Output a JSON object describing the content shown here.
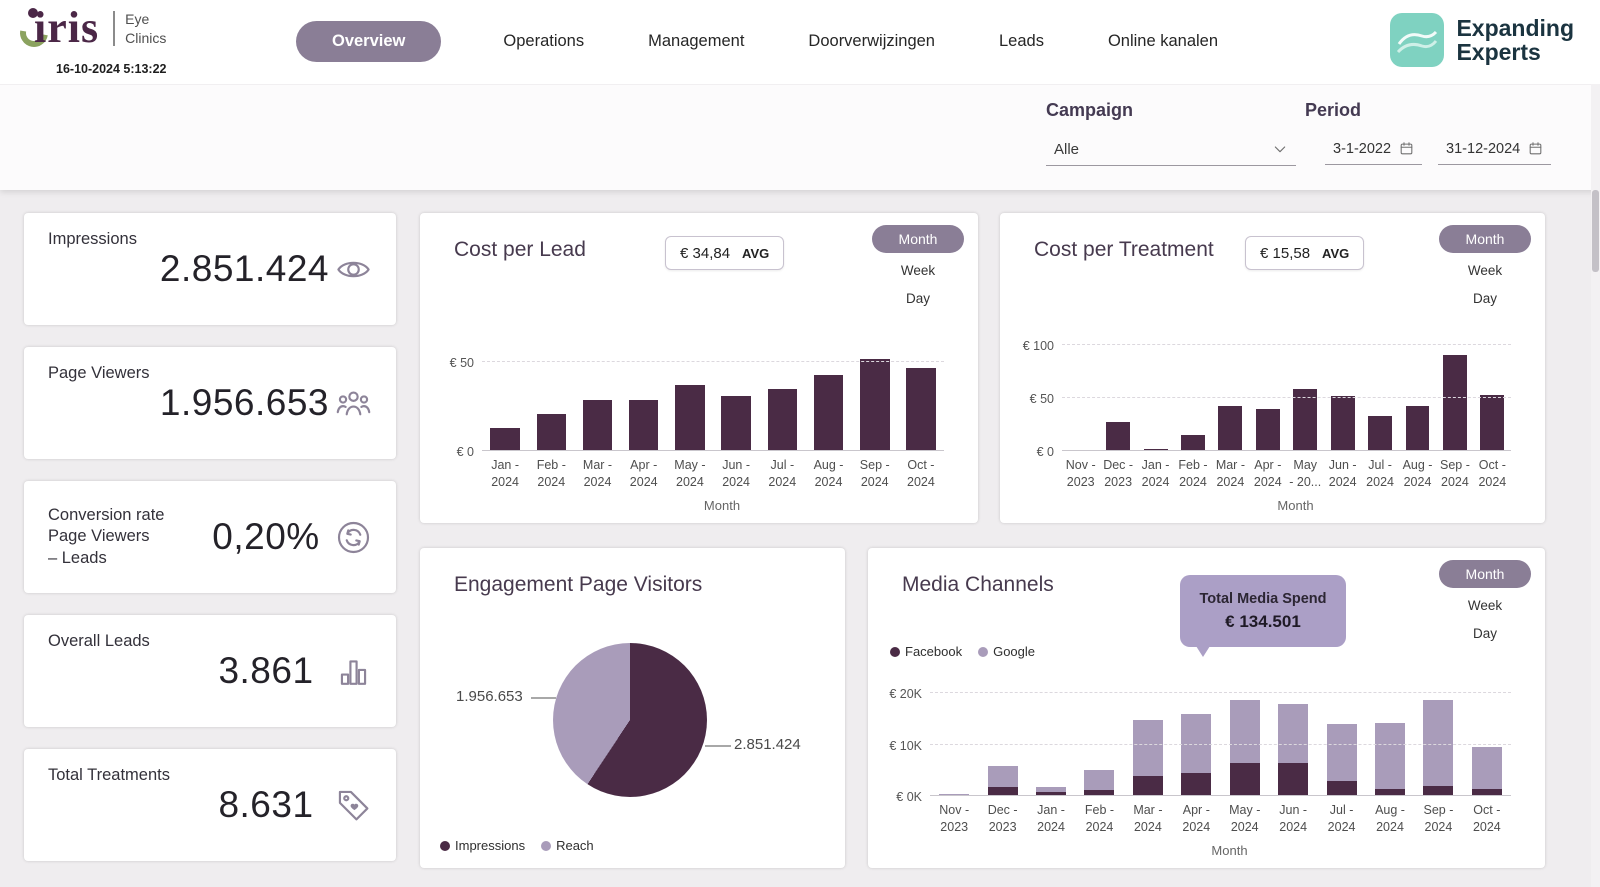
{
  "header": {
    "logo": {
      "wordmark": "iris",
      "division_line1": "Eye",
      "division_line2": "Clinics"
    },
    "timestamp": "16-10-2024 5:13:22",
    "nav": [
      {
        "label": "Overview",
        "active": true
      },
      {
        "label": "Operations",
        "active": false
      },
      {
        "label": "Management",
        "active": false
      },
      {
        "label": "Doorverwijzingen",
        "active": false
      },
      {
        "label": "Leads",
        "active": false
      },
      {
        "label": "Online kanalen",
        "active": false
      }
    ],
    "brand": {
      "name_line1": "Expanding",
      "name_line2": "Experts"
    }
  },
  "filters": {
    "campaign": {
      "label": "Campaign",
      "value": "Alle"
    },
    "period": {
      "label": "Period",
      "start": "3-1-2022",
      "end": "31-12-2024"
    }
  },
  "view_toggle": {
    "options": [
      "Month",
      "Week",
      "Day"
    ],
    "selected": "Month"
  },
  "kpis": [
    {
      "label": "Impressions",
      "value": "2.851.424",
      "icon": "eye-icon"
    },
    {
      "label": "Page Viewers",
      "value": "1.956.653",
      "icon": "audience-icon"
    },
    {
      "label": "Conversion rate Page Viewers – Leads",
      "label_lines": [
        "Conversion rate",
        "Page Viewers",
        "– Leads"
      ],
      "value": "0,20%",
      "icon": "conversion-refresh-icon"
    },
    {
      "label": "Overall Leads",
      "value": "3.861",
      "icon": "bar-chart-icon"
    },
    {
      "label": "Total Treatments",
      "value": "8.631",
      "icon": "tag-heart-icon"
    }
  ],
  "colors": {
    "primary_dark": "#4a2b45",
    "accent_light": "#a99cba",
    "pill": "#8a7e96",
    "callout_bg": "#ab9fc6"
  },
  "chart_data": [
    {
      "id": "cost_per_lead",
      "type": "bar",
      "title": "Cost per Lead",
      "avg_badge": {
        "value": "€ 34,84",
        "suffix": "AVG"
      },
      "categories": [
        [
          "Jan -",
          "2024"
        ],
        [
          "Feb -",
          "2024"
        ],
        [
          "Mar -",
          "2024"
        ],
        [
          "Apr -",
          "2024"
        ],
        [
          "May -",
          "2024"
        ],
        [
          "Jun -",
          "2024"
        ],
        [
          "Jul -",
          "2024"
        ],
        [
          "Aug -",
          "2024"
        ],
        [
          "Sep -",
          "2024"
        ],
        [
          "Oct -",
          "2024"
        ]
      ],
      "values": [
        13,
        21,
        29,
        29,
        37,
        31,
        35,
        43,
        52,
        47
      ],
      "unit": "EUR",
      "ylim": [
        0,
        55
      ],
      "yticks": [
        {
          "v": 0,
          "label": "€ 0"
        },
        {
          "v": 50,
          "label": "€ 50"
        }
      ],
      "xlabel": "Month",
      "bar_color": "#4a2b45",
      "grid": true,
      "legend_position": "none"
    },
    {
      "id": "cost_per_treatment",
      "type": "bar",
      "title": "Cost per Treatment",
      "avg_badge": {
        "value": "€ 15,58",
        "suffix": "AVG"
      },
      "categories": [
        [
          "Nov -",
          "2023"
        ],
        [
          "Dec -",
          "2023"
        ],
        [
          "Jan -",
          "2024"
        ],
        [
          "Feb -",
          "2024"
        ],
        [
          "Mar -",
          "2024"
        ],
        [
          "Apr -",
          "2024"
        ],
        [
          "May",
          "- 20..."
        ],
        [
          "Jun -",
          "2024"
        ],
        [
          "Jul -",
          "2024"
        ],
        [
          "Aug -",
          "2024"
        ],
        [
          "Sep -",
          "2024"
        ],
        [
          "Oct -",
          "2024"
        ]
      ],
      "values": [
        1,
        27,
        2,
        15,
        42,
        40,
        58,
        52,
        33,
        42,
        90,
        53
      ],
      "unit": "EUR",
      "ylim": [
        0,
        105
      ],
      "yticks": [
        {
          "v": 0,
          "label": "€ 0"
        },
        {
          "v": 50,
          "label": "€ 50"
        },
        {
          "v": 100,
          "label": "€ 100"
        }
      ],
      "xlabel": "Month",
      "bar_color": "#4a2b45",
      "grid": true,
      "legend_position": "none"
    },
    {
      "id": "engagement_pie",
      "type": "pie",
      "title": "Engagement Page Visitors",
      "slices": [
        {
          "name": "Impressions",
          "value": 2851424,
          "label": "2.851.424",
          "color": "#4a2b45"
        },
        {
          "name": "Reach",
          "value": 1956653,
          "label": "1.956.653",
          "color": "#a99cba"
        }
      ],
      "legend_position": "bottom-left"
    },
    {
      "id": "media_channels",
      "type": "stacked_bar",
      "title": "Media Channels",
      "callout": {
        "label": "Total Media Spend",
        "value": "€ 134.501"
      },
      "categories": [
        [
          "Nov -",
          "2023"
        ],
        [
          "Dec -",
          "2023"
        ],
        [
          "Jan -",
          "2024"
        ],
        [
          "Feb -",
          "2024"
        ],
        [
          "Mar -",
          "2024"
        ],
        [
          "Apr -",
          "2024"
        ],
        [
          "May -",
          "2024"
        ],
        [
          "Jun -",
          "2024"
        ],
        [
          "Jul -",
          "2024"
        ],
        [
          "Aug -",
          "2024"
        ],
        [
          "Sep -",
          "2024"
        ],
        [
          "Oct -",
          "2024"
        ]
      ],
      "series": [
        {
          "name": "Facebook",
          "color": "#4a2b45",
          "values": [
            0.1,
            1.8,
            0.8,
            1.2,
            4.0,
            4.5,
            6.5,
            6.5,
            3.0,
            1.5,
            2.0,
            1.5
          ]
        },
        {
          "name": "Google",
          "color": "#a99cba",
          "values": [
            0.1,
            4.0,
            1.0,
            4.0,
            10.8,
            11.5,
            12.3,
            11.5,
            11.0,
            12.8,
            16.8,
            8.0
          ]
        }
      ],
      "unit": "EUR thousands",
      "ylim": [
        0,
        21
      ],
      "yticks": [
        {
          "v": 0,
          "label": "€ 0K"
        },
        {
          "v": 10,
          "label": "€ 10K"
        },
        {
          "v": 20,
          "label": "€ 20K"
        }
      ],
      "xlabel": "Month",
      "grid": true,
      "legend_position": "top-left"
    }
  ]
}
